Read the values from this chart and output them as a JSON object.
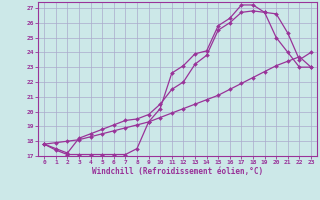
{
  "background_color": "#cce8e8",
  "grid_color": "#aaaacc",
  "line_color": "#993399",
  "xlabel": "Windchill (Refroidissement éolien,°C)",
  "xlim": [
    -0.5,
    23.5
  ],
  "ylim": [
    17,
    27.4
  ],
  "yticks": [
    17,
    18,
    19,
    20,
    21,
    22,
    23,
    24,
    25,
    26,
    27
  ],
  "xticks": [
    0,
    1,
    2,
    3,
    4,
    5,
    6,
    7,
    8,
    9,
    10,
    11,
    12,
    13,
    14,
    15,
    16,
    17,
    18,
    19,
    20,
    21,
    22,
    23
  ],
  "line1_x": [
    0,
    1,
    2,
    3,
    4,
    5,
    6,
    7,
    8,
    9,
    10,
    11,
    12,
    13,
    14,
    15,
    16,
    17,
    18,
    19,
    20,
    21,
    22,
    23
  ],
  "line1_y": [
    17.8,
    17.4,
    17.1,
    17.1,
    17.1,
    17.1,
    17.1,
    17.1,
    17.5,
    19.3,
    20.2,
    22.6,
    23.1,
    23.9,
    24.1,
    25.8,
    26.3,
    27.2,
    27.2,
    26.7,
    25.0,
    24.0,
    23.0,
    23.0
  ],
  "line2_x": [
    0,
    1,
    2,
    3,
    4,
    5,
    6,
    7,
    8,
    9,
    10,
    11,
    12,
    13,
    14,
    15,
    16,
    17,
    18,
    19,
    20,
    21,
    22,
    23
  ],
  "line2_y": [
    17.8,
    17.5,
    17.2,
    18.2,
    18.5,
    18.8,
    19.1,
    19.4,
    19.5,
    19.8,
    20.5,
    21.5,
    22.0,
    23.2,
    23.8,
    25.5,
    26.0,
    26.7,
    26.8,
    26.7,
    26.6,
    25.3,
    23.5,
    24.0
  ],
  "line3_x": [
    0,
    1,
    2,
    3,
    4,
    5,
    6,
    7,
    8,
    9,
    10,
    11,
    12,
    13,
    14,
    15,
    16,
    17,
    18,
    19,
    20,
    21,
    22,
    23
  ],
  "line3_y": [
    17.8,
    17.9,
    18.0,
    18.1,
    18.3,
    18.5,
    18.7,
    18.9,
    19.1,
    19.3,
    19.6,
    19.9,
    20.2,
    20.5,
    20.8,
    21.1,
    21.5,
    21.9,
    22.3,
    22.7,
    23.1,
    23.4,
    23.7,
    23.0
  ]
}
